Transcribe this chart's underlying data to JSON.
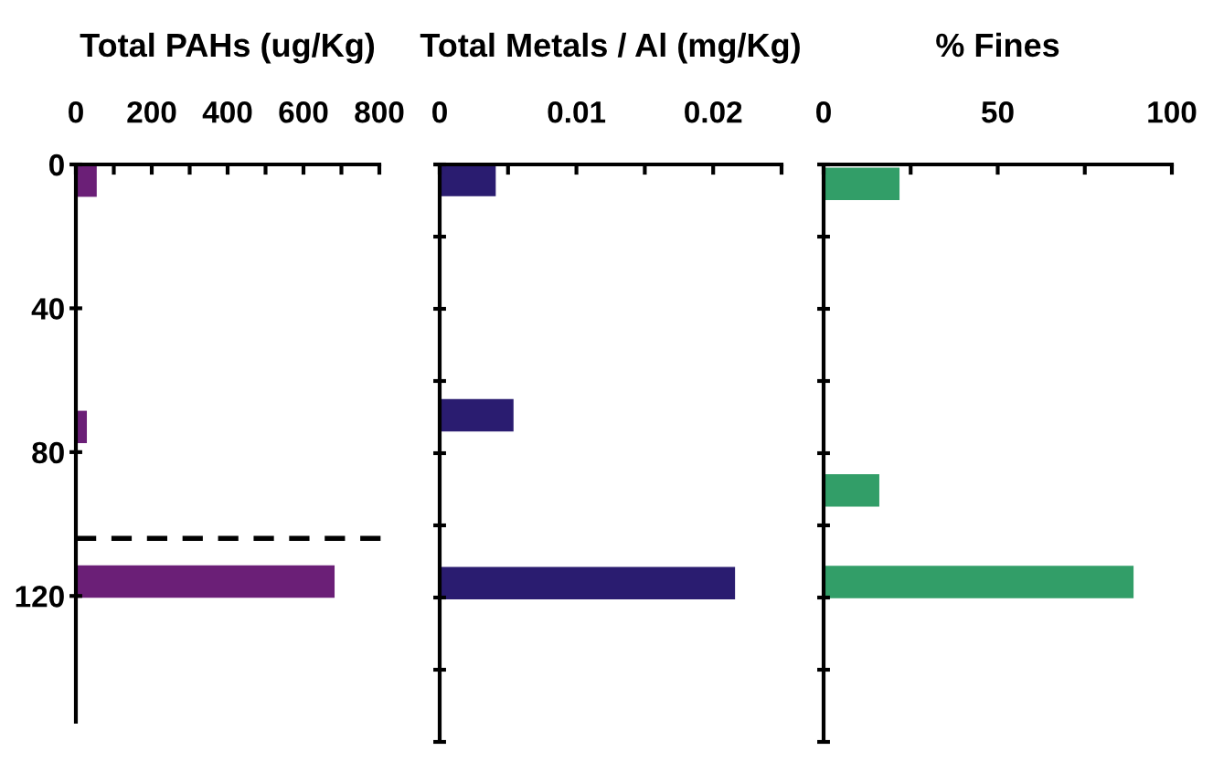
{
  "chart_data": [
    {
      "type": "bar",
      "orientation": "horizontal",
      "title": "Total PAHs (ug/Kg)",
      "x": [
        4.5,
        73,
        116
      ],
      "values": [
        55,
        29,
        682
      ],
      "color": "#6b1f77",
      "xlim": [
        0,
        800
      ],
      "xticks": [
        0,
        {
          "value": 100,
          "label": null
        },
        200,
        {
          "value": 300,
          "label": null
        },
        400,
        {
          "value": 500,
          "label": null
        },
        600,
        {
          "value": 700,
          "label": null
        },
        800
      ],
      "ylim": [
        155,
        0
      ],
      "yticks": [
        0,
        40,
        80,
        120
      ],
      "ref_lines": [
        {
          "axis": "y",
          "value": 104,
          "line_style": "dashed",
          "color": "#000000"
        }
      ]
    },
    {
      "type": "bar",
      "orientation": "horizontal",
      "title": "Total Metals / Al (mg/Kg)",
      "x": [
        4.3,
        69.5,
        116
      ],
      "values": [
        0.0041,
        0.0054,
        0.0216
      ],
      "color": "#2a1c70",
      "xlim": [
        0,
        0.025
      ],
      "xticks": [
        0,
        {
          "value": 0.005,
          "label": null
        },
        0.01,
        {
          "value": 0.015,
          "label": null
        },
        0.02,
        {
          "value": 0.025,
          "label": null
        }
      ],
      "ylim": [
        160,
        0
      ],
      "yticks": [
        0,
        20,
        40,
        60,
        80,
        100,
        120,
        140,
        160
      ],
      "tick_labels": "x"
    },
    {
      "type": "bar",
      "orientation": "horizontal",
      "title": "% Fines",
      "x": [
        5.4,
        90.3,
        115.7
      ],
      "values": [
        21.8,
        16,
        89
      ],
      "color": "#329e68",
      "xlim": [
        0,
        100
      ],
      "xticks": [
        0,
        {
          "value": 25,
          "label": null
        },
        50,
        {
          "value": 75,
          "label": null
        },
        100
      ],
      "ylim": [
        160,
        0
      ],
      "yticks": [
        0,
        20,
        40,
        60,
        80,
        100,
        120,
        140,
        160
      ],
      "tick_labels": "x"
    }
  ]
}
